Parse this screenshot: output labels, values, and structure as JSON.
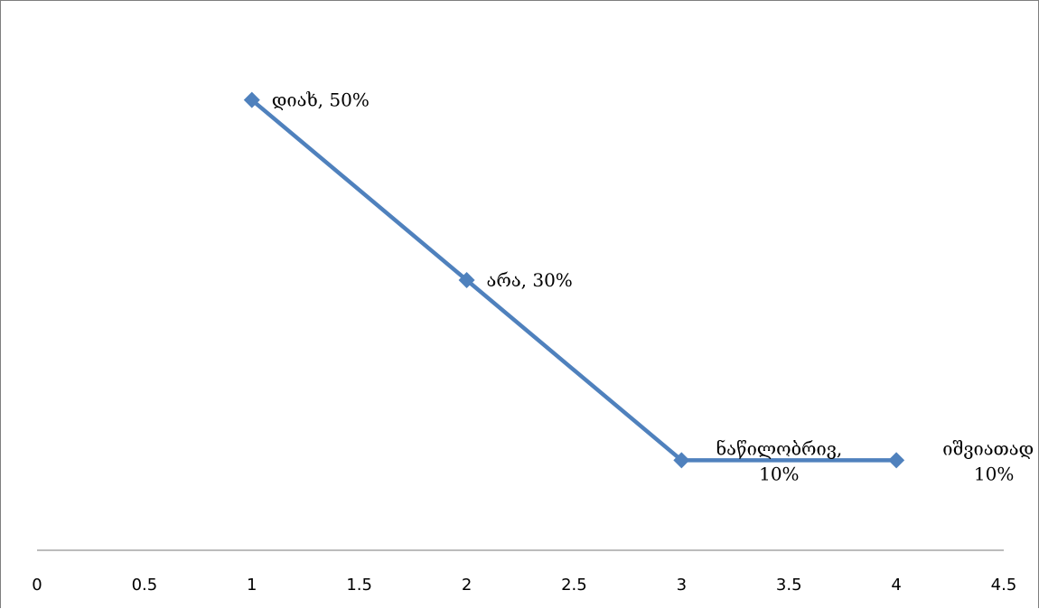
{
  "chart_data": {
    "type": "line",
    "xlim": [
      0,
      4.5
    ],
    "ylim": [
      0,
      0.6
    ],
    "x_ticks": [
      "0",
      "0.5",
      "1",
      "1.5",
      "2",
      "2.5",
      "3",
      "3.5",
      "4",
      "4.5"
    ],
    "grid": false,
    "legend": "none",
    "series": [
      {
        "color": "#4f81bd",
        "marker": "diamond",
        "points": [
          {
            "x": 1,
            "y": 0.5,
            "label": [
              "დიახ, 50%"
            ]
          },
          {
            "x": 2,
            "y": 0.3,
            "label": [
              "არა, 30%"
            ]
          },
          {
            "x": 3,
            "y": 0.1,
            "label": [
              "ნაწილობრივ,",
              "10%"
            ]
          },
          {
            "x": 4,
            "y": 0.1,
            "label": [
              "იშვიათად ,",
              "10%"
            ]
          }
        ]
      }
    ],
    "axis_color": "#a6a6a6"
  }
}
